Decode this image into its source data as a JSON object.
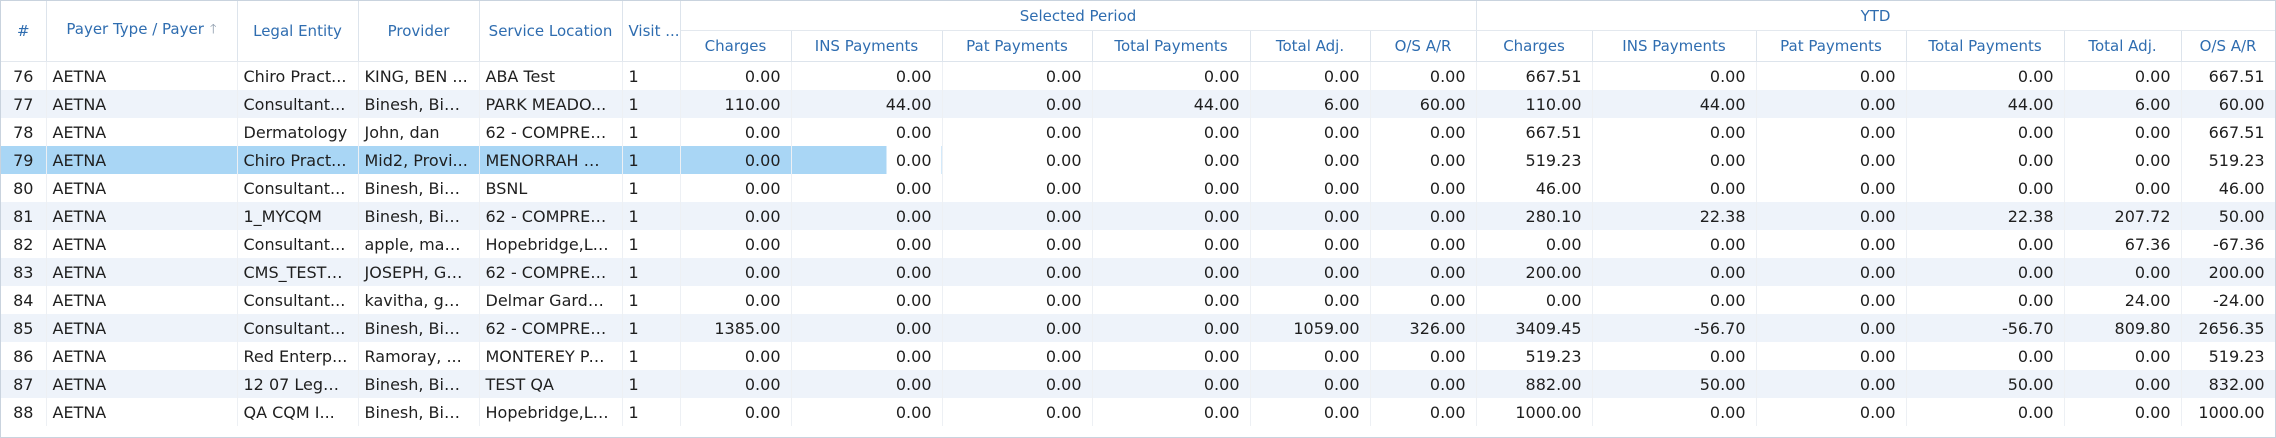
{
  "columns": {
    "row_no": "#",
    "payer": "Payer Type / Payer",
    "legal_entity": "Legal Entity",
    "provider": "Provider",
    "service_location": "Service Location",
    "visit": "Visit ...",
    "group_selected": "Selected Period",
    "group_ytd": "YTD",
    "charges": "Charges",
    "ins_payments": "INS Payments",
    "pat_payments": "Pat Payments",
    "total_payments": "Total Payments",
    "total_adj": "Total Adj.",
    "os_ar": "O/S A/R",
    "sort_icon": "arrow-up-icon"
  },
  "rows": [
    {
      "n": "76",
      "payer": "AETNA",
      "entity": "Chiro Pract...",
      "provider": "KING, BEN ...",
      "location": "ABA Test",
      "visit": "1",
      "sp": [
        "0.00",
        "0.00",
        "0.00",
        "0.00",
        "0.00",
        "0.00"
      ],
      "ytd": [
        "667.51",
        "0.00",
        "0.00",
        "0.00",
        "0.00",
        "667.51"
      ]
    },
    {
      "n": "77",
      "payer": "AETNA",
      "entity": "Consultant...",
      "provider": "Binesh, Bin...",
      "location": "PARK MEADO...",
      "visit": "1",
      "sp": [
        "110.00",
        "44.00",
        "0.00",
        "44.00",
        "6.00",
        "60.00"
      ],
      "ytd": [
        "110.00",
        "44.00",
        "0.00",
        "44.00",
        "6.00",
        "60.00"
      ]
    },
    {
      "n": "78",
      "payer": "AETNA",
      "entity": "Dermatology",
      "provider": "John, dan",
      "location": "62 - COMPREH...",
      "visit": "1",
      "sp": [
        "0.00",
        "0.00",
        "0.00",
        "0.00",
        "0.00",
        "0.00"
      ],
      "ytd": [
        "667.51",
        "0.00",
        "0.00",
        "0.00",
        "0.00",
        "667.51"
      ]
    },
    {
      "n": "79",
      "payer": "AETNA",
      "entity": "Chiro Pract...",
      "provider": "Mid2, Provi...",
      "location": "MENORRAH M...",
      "visit": "1",
      "sp": [
        "0.00",
        "0.00",
        "0.00",
        "0.00",
        "0.00",
        "0.00"
      ],
      "ytd": [
        "519.23",
        "0.00",
        "0.00",
        "0.00",
        "0.00",
        "519.23"
      ]
    },
    {
      "n": "80",
      "payer": "AETNA",
      "entity": "Consultant...",
      "provider": "Binesh, Bin...",
      "location": "BSNL",
      "visit": "1",
      "sp": [
        "0.00",
        "0.00",
        "0.00",
        "0.00",
        "0.00",
        "0.00"
      ],
      "ytd": [
        "46.00",
        "0.00",
        "0.00",
        "0.00",
        "0.00",
        "46.00"
      ]
    },
    {
      "n": "81",
      "payer": "AETNA",
      "entity": "1_MYCQM",
      "provider": "Binesh, Bin...",
      "location": "62 - COMPREH...",
      "visit": "1",
      "sp": [
        "0.00",
        "0.00",
        "0.00",
        "0.00",
        "0.00",
        "0.00"
      ],
      "ytd": [
        "280.10",
        "22.38",
        "0.00",
        "22.38",
        "207.72",
        "50.00"
      ]
    },
    {
      "n": "82",
      "payer": "AETNA",
      "entity": "Consultant...",
      "provider": "apple, man...",
      "location": "Hopebridge,LL...",
      "visit": "1",
      "sp": [
        "0.00",
        "0.00",
        "0.00",
        "0.00",
        "0.00",
        "0.00"
      ],
      "ytd": [
        "0.00",
        "0.00",
        "0.00",
        "0.00",
        "67.36",
        "-67.36"
      ]
    },
    {
      "n": "83",
      "payer": "AETNA",
      "entity": "CMS_TEST_...",
      "provider": "JOSEPH, GE...",
      "location": "62 - COMPREH...",
      "visit": "1",
      "sp": [
        "0.00",
        "0.00",
        "0.00",
        "0.00",
        "0.00",
        "0.00"
      ],
      "ytd": [
        "200.00",
        "0.00",
        "0.00",
        "0.00",
        "0.00",
        "200.00"
      ]
    },
    {
      "n": "84",
      "payer": "AETNA",
      "entity": "Consultant...",
      "provider": "kavitha, ga...",
      "location": "Delmar Garde...",
      "visit": "1",
      "sp": [
        "0.00",
        "0.00",
        "0.00",
        "0.00",
        "0.00",
        "0.00"
      ],
      "ytd": [
        "0.00",
        "0.00",
        "0.00",
        "0.00",
        "24.00",
        "-24.00"
      ]
    },
    {
      "n": "85",
      "payer": "AETNA",
      "entity": "Consultant...",
      "provider": "Binesh, Bin...",
      "location": "62 - COMPREH...",
      "visit": "1",
      "sp": [
        "1385.00",
        "0.00",
        "0.00",
        "0.00",
        "1059.00",
        "326.00"
      ],
      "ytd": [
        "3409.45",
        "-56.70",
        "0.00",
        "-56.70",
        "809.80",
        "2656.35"
      ]
    },
    {
      "n": "86",
      "payer": "AETNA",
      "entity": "Red Enterp...",
      "provider": "Ramoray, ...",
      "location": "MONTEREY PA...",
      "visit": "1",
      "sp": [
        "0.00",
        "0.00",
        "0.00",
        "0.00",
        "0.00",
        "0.00"
      ],
      "ytd": [
        "519.23",
        "0.00",
        "0.00",
        "0.00",
        "0.00",
        "519.23"
      ]
    },
    {
      "n": "87",
      "payer": "AETNA",
      "entity": "12 07 Legal...",
      "provider": "Binesh, Bin...",
      "location": "TEST QA",
      "visit": "1",
      "sp": [
        "0.00",
        "0.00",
        "0.00",
        "0.00",
        "0.00",
        "0.00"
      ],
      "ytd": [
        "882.00",
        "50.00",
        "0.00",
        "50.00",
        "0.00",
        "832.00"
      ]
    },
    {
      "n": "88",
      "payer": "AETNA",
      "entity": "QA CQM I...",
      "provider": "Binesh, Bin...",
      "location": "Hopebridge,LL...",
      "visit": "1",
      "sp": [
        "0.00",
        "0.00",
        "0.00",
        "0.00",
        "0.00",
        "0.00"
      ],
      "ytd": [
        "1000.00",
        "0.00",
        "0.00",
        "0.00",
        "0.00",
        "1000.00"
      ]
    }
  ]
}
